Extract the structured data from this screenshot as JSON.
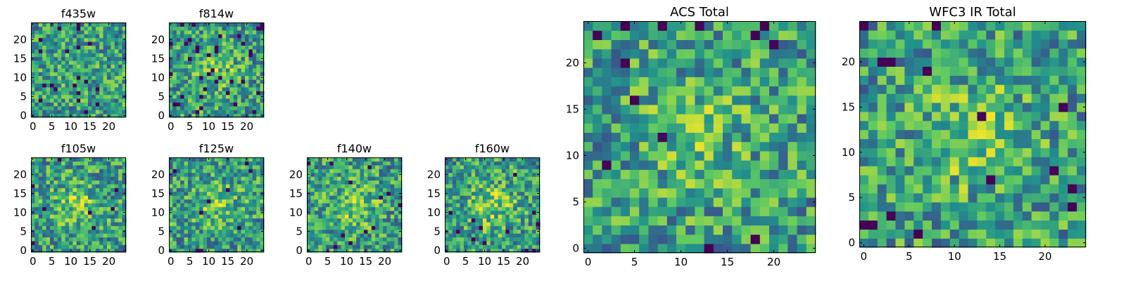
{
  "colormap": [
    "#440154",
    "#3b528b",
    "#21918c",
    "#5ec962",
    "#fde725"
  ],
  "chart_data": [
    {
      "type": "heatmap",
      "title": "f435w",
      "grid": [
        25,
        25
      ],
      "cmap": "viridis",
      "xlim": [
        -0.5,
        24.5
      ],
      "ylim": [
        -0.5,
        24.5
      ],
      "xticks": [
        "0",
        "5",
        "10",
        "15",
        "20"
      ],
      "yticks": [
        "0",
        "5",
        "10",
        "15",
        "20"
      ],
      "seed": 11,
      "blob": 0.05,
      "dark": 0.035
    },
    {
      "type": "heatmap",
      "title": "f814w",
      "grid": [
        25,
        25
      ],
      "cmap": "viridis",
      "xlim": [
        -0.5,
        24.5
      ],
      "ylim": [
        -0.5,
        24.5
      ],
      "xticks": [
        "0",
        "5",
        "10",
        "15",
        "20"
      ],
      "yticks": [
        "0",
        "5",
        "10",
        "15",
        "20"
      ],
      "seed": 27,
      "blob": 0.25,
      "dark": 0.05
    },
    {
      "type": "heatmap",
      "title": "f105w",
      "grid": [
        25,
        25
      ],
      "cmap": "viridis",
      "xlim": [
        -0.5,
        24.5
      ],
      "ylim": [
        -0.5,
        24.5
      ],
      "xticks": [
        "0",
        "5",
        "10",
        "15",
        "20"
      ],
      "yticks": [
        "0",
        "5",
        "10",
        "15",
        "20"
      ],
      "seed": 43,
      "blob": 0.3,
      "dark": 0.015
    },
    {
      "type": "heatmap",
      "title": "f125w",
      "grid": [
        25,
        25
      ],
      "cmap": "viridis",
      "xlim": [
        -0.5,
        24.5
      ],
      "ylim": [
        -0.5,
        24.5
      ],
      "xticks": [
        "0",
        "5",
        "10",
        "15",
        "20"
      ],
      "yticks": [
        "0",
        "5",
        "10",
        "15",
        "20"
      ],
      "seed": 59,
      "blob": 0.3,
      "dark": 0.015
    },
    {
      "type": "heatmap",
      "title": "f140w",
      "grid": [
        25,
        25
      ],
      "cmap": "viridis",
      "xlim": [
        -0.5,
        24.5
      ],
      "ylim": [
        -0.5,
        24.5
      ],
      "xticks": [
        "0",
        "5",
        "10",
        "15",
        "20"
      ],
      "yticks": [
        "0",
        "5",
        "10",
        "15",
        "20"
      ],
      "seed": 71,
      "blob": 0.35,
      "dark": 0.015
    },
    {
      "type": "heatmap",
      "title": "f160w",
      "grid": [
        25,
        25
      ],
      "cmap": "viridis",
      "xlim": [
        -0.5,
        24.5
      ],
      "ylim": [
        -0.5,
        24.5
      ],
      "xticks": [
        "0",
        "5",
        "10",
        "15",
        "20"
      ],
      "yticks": [
        "0",
        "5",
        "10",
        "15",
        "20"
      ],
      "seed": 83,
      "blob": 0.35,
      "dark": 0.02
    },
    {
      "type": "heatmap",
      "title": "ACS Total",
      "grid": [
        25,
        25
      ],
      "cmap": "viridis",
      "xlim": [
        -0.5,
        24.5
      ],
      "ylim": [
        -0.5,
        24.5
      ],
      "xticks": [
        "0",
        "5",
        "10",
        "15",
        "20"
      ],
      "yticks": [
        "0",
        "5",
        "10",
        "15",
        "20"
      ],
      "seed": 97,
      "blob": 0.25,
      "dark": 0.02
    },
    {
      "type": "heatmap",
      "title": "WFC3 IR Total",
      "grid": [
        25,
        25
      ],
      "cmap": "viridis",
      "xlim": [
        -0.5,
        24.5
      ],
      "ylim": [
        -0.5,
        24.5
      ],
      "xticks": [
        "0",
        "5",
        "10",
        "15",
        "20"
      ],
      "yticks": [
        "0",
        "5",
        "10",
        "15",
        "20"
      ],
      "seed": 113,
      "blob": 0.35,
      "dark": 0.02
    }
  ]
}
